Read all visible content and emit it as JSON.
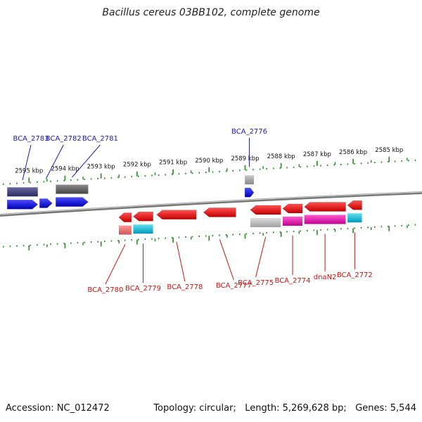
{
  "title": "Bacillus cereus 03BB102, complete genome",
  "footer": {
    "accession": "Accession: NC_012472",
    "topology": "Topology: circular;",
    "length": "Length: 5,269,628 bp;",
    "genes": "Genes: 5,544"
  },
  "colors": {
    "forward": "#0000ee",
    "reverse": "#dd0000",
    "tick": "#228822",
    "backbone": "#888888",
    "gene_label_forward": "#1a1aaa",
    "gene_label_reverse": "#cc1111"
  },
  "scale": {
    "unit": "kbp",
    "ticks": [
      {
        "label": "2595 kbp",
        "pos": 2595
      },
      {
        "label": "2594 kbp",
        "pos": 2594
      },
      {
        "label": "2593 kbp",
        "pos": 2593
      },
      {
        "label": "2592 kbp",
        "pos": 2592
      },
      {
        "label": "2591 kbp",
        "pos": 2591
      },
      {
        "label": "2590 kbp",
        "pos": 2590
      },
      {
        "label": "2589 kbp",
        "pos": 2589
      },
      {
        "label": "2588 kbp",
        "pos": 2588
      },
      {
        "label": "2587 kbp",
        "pos": 2587
      },
      {
        "label": "2586 kbp",
        "pos": 2586
      },
      {
        "label": "2585 kbp",
        "pos": 2585
      }
    ]
  },
  "forward_genes": [
    {
      "name": "BCA_2783",
      "start": 2595.45,
      "end": 2594.6
    },
    {
      "name": "BCA_2782",
      "start": 2594.55,
      "end": 2594.2
    },
    {
      "name": "BCA_2781",
      "start": 2594.1,
      "end": 2593.2
    },
    {
      "name": "BCA_2776",
      "start": 2588.85,
      "end": 2588.6
    }
  ],
  "reverse_genes": [
    {
      "name": "BCA_2780",
      "start": 2592.35,
      "end": 2592.0
    },
    {
      "name": "BCA_2779",
      "start": 2591.95,
      "end": 2591.4
    },
    {
      "name": "BCA_2778",
      "start": 2591.3,
      "end": 2590.2
    },
    {
      "name": "BCA_2777",
      "start": 2590.0,
      "end": 2589.1
    },
    {
      "name": "BCA_2775",
      "start": 2588.7,
      "end": 2587.85
    },
    {
      "name": "BCA_2774",
      "start": 2587.8,
      "end": 2587.25
    },
    {
      "name": "dnaN2",
      "start": 2587.2,
      "end": 2586.05
    },
    {
      "name": "BCA_2772",
      "start": 2586.0,
      "end": 2585.6
    }
  ]
}
